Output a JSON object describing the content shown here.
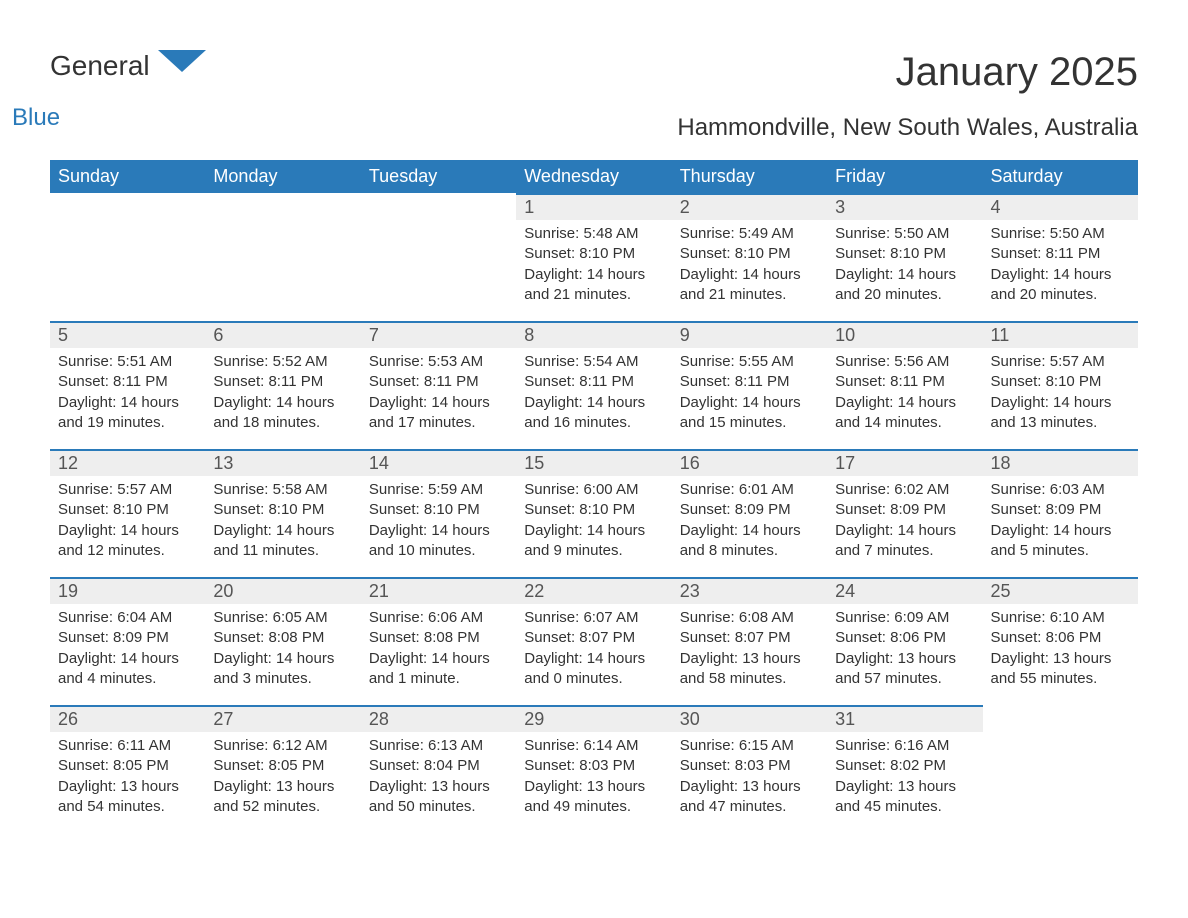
{
  "logo": {
    "text1": "General",
    "text2": "Blue"
  },
  "title": "January 2025",
  "location": "Hammondville, New South Wales, Australia",
  "colors": {
    "header_bg": "#2a7ab9",
    "header_text": "#ffffff",
    "daynum_bg": "#eeeeee",
    "border": "#2a7ab9",
    "text": "#333333",
    "logo_blue": "#2a7ab9",
    "page_bg": "#ffffff"
  },
  "typography": {
    "title_fontsize": 40,
    "location_fontsize": 24,
    "dayheader_fontsize": 18,
    "daynum_fontsize": 18,
    "body_fontsize": 15
  },
  "dayHeaders": [
    "Sunday",
    "Monday",
    "Tuesday",
    "Wednesday",
    "Thursday",
    "Friday",
    "Saturday"
  ],
  "weeks": [
    [
      null,
      null,
      null,
      {
        "n": "1",
        "sr": "Sunrise: 5:48 AM",
        "ss": "Sunset: 8:10 PM",
        "dl": "Daylight: 14 hours and 21 minutes."
      },
      {
        "n": "2",
        "sr": "Sunrise: 5:49 AM",
        "ss": "Sunset: 8:10 PM",
        "dl": "Daylight: 14 hours and 21 minutes."
      },
      {
        "n": "3",
        "sr": "Sunrise: 5:50 AM",
        "ss": "Sunset: 8:10 PM",
        "dl": "Daylight: 14 hours and 20 minutes."
      },
      {
        "n": "4",
        "sr": "Sunrise: 5:50 AM",
        "ss": "Sunset: 8:11 PM",
        "dl": "Daylight: 14 hours and 20 minutes."
      }
    ],
    [
      {
        "n": "5",
        "sr": "Sunrise: 5:51 AM",
        "ss": "Sunset: 8:11 PM",
        "dl": "Daylight: 14 hours and 19 minutes."
      },
      {
        "n": "6",
        "sr": "Sunrise: 5:52 AM",
        "ss": "Sunset: 8:11 PM",
        "dl": "Daylight: 14 hours and 18 minutes."
      },
      {
        "n": "7",
        "sr": "Sunrise: 5:53 AM",
        "ss": "Sunset: 8:11 PM",
        "dl": "Daylight: 14 hours and 17 minutes."
      },
      {
        "n": "8",
        "sr": "Sunrise: 5:54 AM",
        "ss": "Sunset: 8:11 PM",
        "dl": "Daylight: 14 hours and 16 minutes."
      },
      {
        "n": "9",
        "sr": "Sunrise: 5:55 AM",
        "ss": "Sunset: 8:11 PM",
        "dl": "Daylight: 14 hours and 15 minutes."
      },
      {
        "n": "10",
        "sr": "Sunrise: 5:56 AM",
        "ss": "Sunset: 8:11 PM",
        "dl": "Daylight: 14 hours and 14 minutes."
      },
      {
        "n": "11",
        "sr": "Sunrise: 5:57 AM",
        "ss": "Sunset: 8:10 PM",
        "dl": "Daylight: 14 hours and 13 minutes."
      }
    ],
    [
      {
        "n": "12",
        "sr": "Sunrise: 5:57 AM",
        "ss": "Sunset: 8:10 PM",
        "dl": "Daylight: 14 hours and 12 minutes."
      },
      {
        "n": "13",
        "sr": "Sunrise: 5:58 AM",
        "ss": "Sunset: 8:10 PM",
        "dl": "Daylight: 14 hours and 11 minutes."
      },
      {
        "n": "14",
        "sr": "Sunrise: 5:59 AM",
        "ss": "Sunset: 8:10 PM",
        "dl": "Daylight: 14 hours and 10 minutes."
      },
      {
        "n": "15",
        "sr": "Sunrise: 6:00 AM",
        "ss": "Sunset: 8:10 PM",
        "dl": "Daylight: 14 hours and 9 minutes."
      },
      {
        "n": "16",
        "sr": "Sunrise: 6:01 AM",
        "ss": "Sunset: 8:09 PM",
        "dl": "Daylight: 14 hours and 8 minutes."
      },
      {
        "n": "17",
        "sr": "Sunrise: 6:02 AM",
        "ss": "Sunset: 8:09 PM",
        "dl": "Daylight: 14 hours and 7 minutes."
      },
      {
        "n": "18",
        "sr": "Sunrise: 6:03 AM",
        "ss": "Sunset: 8:09 PM",
        "dl": "Daylight: 14 hours and 5 minutes."
      }
    ],
    [
      {
        "n": "19",
        "sr": "Sunrise: 6:04 AM",
        "ss": "Sunset: 8:09 PM",
        "dl": "Daylight: 14 hours and 4 minutes."
      },
      {
        "n": "20",
        "sr": "Sunrise: 6:05 AM",
        "ss": "Sunset: 8:08 PM",
        "dl": "Daylight: 14 hours and 3 minutes."
      },
      {
        "n": "21",
        "sr": "Sunrise: 6:06 AM",
        "ss": "Sunset: 8:08 PM",
        "dl": "Daylight: 14 hours and 1 minute."
      },
      {
        "n": "22",
        "sr": "Sunrise: 6:07 AM",
        "ss": "Sunset: 8:07 PM",
        "dl": "Daylight: 14 hours and 0 minutes."
      },
      {
        "n": "23",
        "sr": "Sunrise: 6:08 AM",
        "ss": "Sunset: 8:07 PM",
        "dl": "Daylight: 13 hours and 58 minutes."
      },
      {
        "n": "24",
        "sr": "Sunrise: 6:09 AM",
        "ss": "Sunset: 8:06 PM",
        "dl": "Daylight: 13 hours and 57 minutes."
      },
      {
        "n": "25",
        "sr": "Sunrise: 6:10 AM",
        "ss": "Sunset: 8:06 PM",
        "dl": "Daylight: 13 hours and 55 minutes."
      }
    ],
    [
      {
        "n": "26",
        "sr": "Sunrise: 6:11 AM",
        "ss": "Sunset: 8:05 PM",
        "dl": "Daylight: 13 hours and 54 minutes."
      },
      {
        "n": "27",
        "sr": "Sunrise: 6:12 AM",
        "ss": "Sunset: 8:05 PM",
        "dl": "Daylight: 13 hours and 52 minutes."
      },
      {
        "n": "28",
        "sr": "Sunrise: 6:13 AM",
        "ss": "Sunset: 8:04 PM",
        "dl": "Daylight: 13 hours and 50 minutes."
      },
      {
        "n": "29",
        "sr": "Sunrise: 6:14 AM",
        "ss": "Sunset: 8:03 PM",
        "dl": "Daylight: 13 hours and 49 minutes."
      },
      {
        "n": "30",
        "sr": "Sunrise: 6:15 AM",
        "ss": "Sunset: 8:03 PM",
        "dl": "Daylight: 13 hours and 47 minutes."
      },
      {
        "n": "31",
        "sr": "Sunrise: 6:16 AM",
        "ss": "Sunset: 8:02 PM",
        "dl": "Daylight: 13 hours and 45 minutes."
      },
      null
    ]
  ]
}
